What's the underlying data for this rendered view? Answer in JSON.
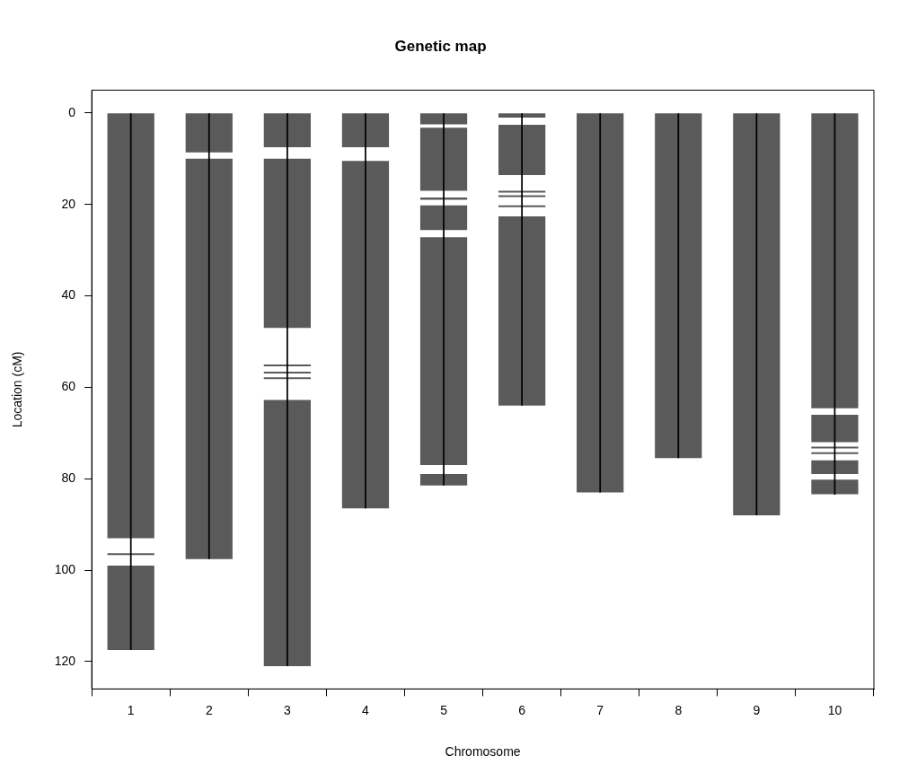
{
  "chart_data": {
    "type": "bar",
    "title": "Genetic map",
    "xlabel": "Chromosome",
    "ylabel": "Location (cM)",
    "categories": [
      "1",
      "2",
      "3",
      "4",
      "5",
      "6",
      "7",
      "8",
      "9",
      "10"
    ],
    "ylim": [
      126,
      -5
    ],
    "yticks": [
      0,
      20,
      40,
      60,
      80,
      100,
      120
    ],
    "grid": false,
    "legend": false,
    "series": [
      {
        "color": "#000000",
        "base": [
          0,
          0,
          0,
          0,
          0,
          0,
          0,
          0,
          0,
          0
        ],
        "values": [
          117.5,
          97.6,
          121,
          86.5,
          81.5,
          64,
          83,
          75.5,
          88,
          83.5
        ]
      },
      {
        "color": "#5a5a5a",
        "base": [
          0,
          0,
          0,
          0,
          0,
          0,
          0,
          0,
          0,
          0
        ],
        "values": [
          93,
          8.6,
          7.5,
          7.5,
          2.5,
          1,
          83,
          75.5,
          88,
          64.6
        ]
      },
      {
        "color": "#5a5a5a",
        "base": [
          96.3,
          10,
          10,
          10.5,
          3.2,
          2.6,
          null,
          null,
          null,
          66
        ],
        "values": [
          0.4,
          87.6,
          37,
          76,
          13.8,
          11,
          null,
          null,
          null,
          6
        ]
      },
      {
        "color": "#5a5a5a",
        "base": [
          99,
          null,
          55,
          null,
          18.5,
          17,
          null,
          null,
          null,
          73
        ],
        "values": [
          18.5,
          null,
          0.4,
          null,
          0.5,
          0.4,
          null,
          null,
          null,
          0.4
        ]
      },
      {
        "color": "#5a5a5a",
        "base": [
          null,
          null,
          56.6,
          null,
          20.2,
          18,
          null,
          null,
          null,
          74.2
        ],
        "values": [
          null,
          null,
          0.4,
          null,
          5.4,
          0.4,
          null,
          null,
          null,
          0.4
        ]
      },
      {
        "color": "#5a5a5a",
        "base": [
          null,
          null,
          57.8,
          null,
          27.2,
          20.2,
          null,
          null,
          null,
          76
        ],
        "values": [
          null,
          null,
          0.4,
          null,
          49.8,
          0.4,
          null,
          null,
          null,
          3
        ]
      },
      {
        "color": "#5a5a5a",
        "base": [
          null,
          null,
          62.8,
          null,
          79,
          22.6,
          null,
          null,
          null,
          80.2
        ],
        "values": [
          null,
          null,
          58.2,
          null,
          2.5,
          41.4,
          null,
          null,
          null,
          3.2
        ]
      }
    ]
  }
}
